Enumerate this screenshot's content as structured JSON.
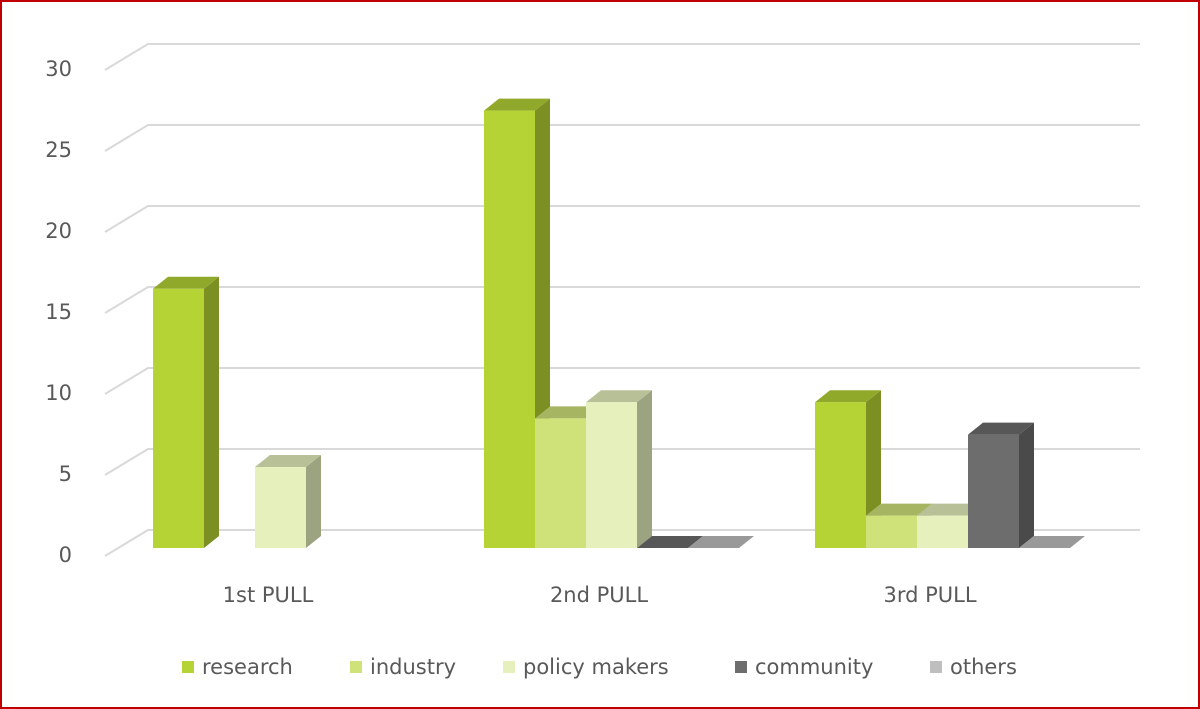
{
  "chart_data": {
    "type": "bar3d",
    "categories": [
      "1st PULL",
      "2nd PULL",
      "3rd PULL"
    ],
    "series": [
      {
        "name": "research",
        "color": "#b5d334",
        "values": [
          16,
          27,
          9
        ]
      },
      {
        "name": "industry",
        "color": "#cfe27a",
        "values": [
          null,
          8,
          2
        ]
      },
      {
        "name": "policy makers",
        "color": "#e6f0bd",
        "values": [
          5,
          9,
          2
        ]
      },
      {
        "name": "community",
        "color": "#6d6d6d",
        "values": [
          null,
          0,
          7
        ]
      },
      {
        "name": "others",
        "color": "#bfbfbf",
        "values": [
          null,
          0,
          0
        ]
      }
    ],
    "ylim": [
      0,
      30
    ],
    "yticks": [
      0,
      5,
      10,
      15,
      20,
      25,
      30
    ],
    "grid": true,
    "legend": "bottom"
  }
}
